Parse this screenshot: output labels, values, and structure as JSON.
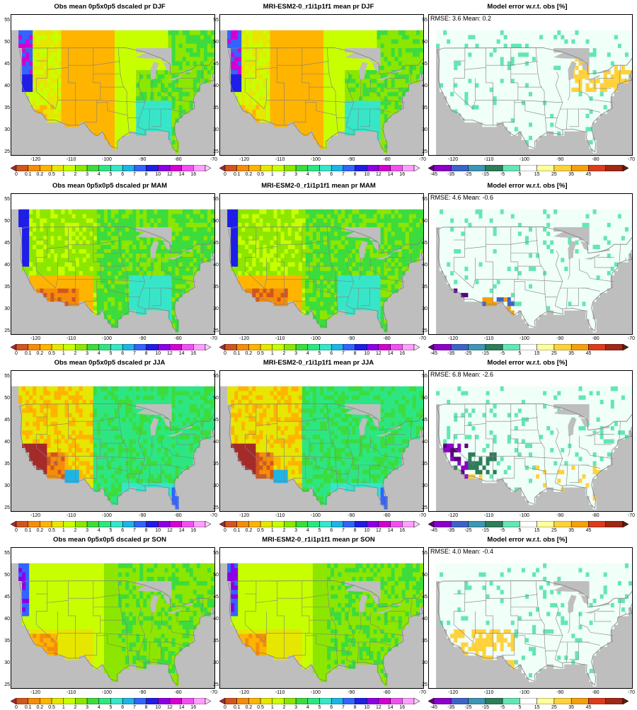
{
  "rows": [
    {
      "obs_title": "Obs mean 0p5x0p5 dscaled pr DJF",
      "model_title": "MRI-ESM2-0_r1i1p1f1 mean pr DJF",
      "error_title": "Model error w.r.t. obs [%]",
      "stats": "RMSE: 3.6  Mean: 0.2",
      "obs_style": "dry-interior-wet-southeast",
      "error_style": "dry-northeast"
    },
    {
      "obs_title": "Obs mean 0p5x0p5 dscaled pr MAM",
      "model_title": "MRI-ESM2-0_r1i1p1f1 mean pr MAM",
      "error_title": "Model error w.r.t. obs [%]",
      "stats": "RMSE: 4.6  Mean: -0.6",
      "obs_style": "wet-southeast-dry-southwest",
      "error_style": "mixed-southwest"
    },
    {
      "obs_title": "Obs mean 0p5x0p5 dscaled pr JJA",
      "model_title": "MRI-ESM2-0_r1i1p1f1 mean pr JJA",
      "error_title": "Model error w.r.t. obs [%]",
      "stats": "RMSE: 6.8  Mean: -2.6",
      "obs_style": "wet-east-very-dry-west",
      "error_style": "wet-west"
    },
    {
      "obs_title": "Obs mean 0p5x0p5 dscaled pr SON",
      "model_title": "MRI-ESM2-0_r1i1p1f1 mean pr SON",
      "error_title": "Model error w.r.t. obs [%]",
      "stats": "RMSE: 4.0  Mean: -0.4",
      "obs_style": "moderate-wet-northwest",
      "error_style": "dry-southwest"
    }
  ],
  "x_ticks": [
    "-120",
    "-110",
    "-100",
    "-90",
    "-80",
    "-70"
  ],
  "y_ticks": [
    "55",
    "50",
    "45",
    "40",
    "35",
    "30",
    "25"
  ],
  "pr_colorbar": {
    "labels": [
      "0",
      "0.1",
      "0.2",
      "0.5",
      "1",
      "2",
      "3",
      "4",
      "5",
      "6",
      "7",
      "8",
      "10",
      "12",
      "14",
      "16"
    ],
    "colors": [
      "#a52a2a",
      "#d2551e",
      "#f58c0a",
      "#ffb400",
      "#e6e600",
      "#c8ff00",
      "#8ce600",
      "#3cdc3c",
      "#2de682",
      "#37e6c8",
      "#1eb4e6",
      "#3264ff",
      "#1e1ee6",
      "#8c00e6",
      "#d200d2",
      "#f050f0",
      "#ffa0ff",
      "#ffd2ff"
    ]
  },
  "err_colorbar": {
    "labels": [
      "-45",
      "-35",
      "-25",
      "-15",
      "-5",
      "5",
      "15",
      "25",
      "35",
      "45"
    ],
    "colors": [
      "#5a0078",
      "#8c00c8",
      "#3c64c8",
      "#3c96b4",
      "#2d7d5a",
      "#64e6b4",
      "#ffffff",
      "#ffff99",
      "#ffd23c",
      "#f5a00a",
      "#dc3c1e",
      "#a02814",
      "#5a1e0a"
    ]
  },
  "colors": {
    "land_gray": "#bebebe",
    "ocean_gray": "#bebebe",
    "border": "#808080"
  }
}
